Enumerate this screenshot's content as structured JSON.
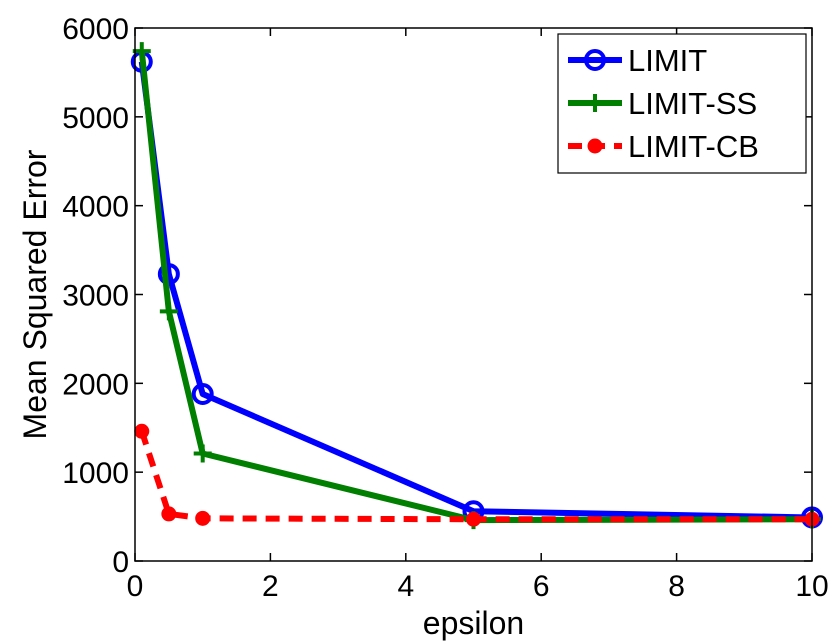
{
  "chart_data": {
    "type": "line",
    "title": "",
    "xlabel": "epsilon",
    "ylabel": "Mean Squared Error",
    "xlim": [
      0,
      10
    ],
    "ylim": [
      0,
      6000
    ],
    "xticks": [
      0,
      2,
      4,
      6,
      8,
      10
    ],
    "xtick_labels": [
      "0",
      "2",
      "4",
      "6",
      "8",
      "10"
    ],
    "yticks": [
      0,
      1000,
      2000,
      3000,
      4000,
      5000,
      6000
    ],
    "ytick_labels": [
      "0",
      "1000",
      "2000",
      "3000",
      "4000",
      "5000",
      "6000"
    ],
    "grid": false,
    "legend_position": "top-right",
    "x": [
      0.1,
      0.5,
      1,
      5,
      10
    ],
    "series": [
      {
        "name": "LIMIT",
        "color": "#0000ff",
        "marker": "circle",
        "line_style": "solid",
        "values": [
          5620,
          3230,
          1880,
          560,
          490
        ]
      },
      {
        "name": "LIMIT-SS",
        "color": "#007f00",
        "marker": "plus",
        "line_style": "solid",
        "values": [
          5740,
          2810,
          1210,
          460,
          470
        ]
      },
      {
        "name": "LIMIT-CB",
        "color": "#ff0000",
        "marker": "dot",
        "line_style": "dashed",
        "values": [
          1460,
          530,
          480,
          470,
          470
        ]
      }
    ]
  }
}
